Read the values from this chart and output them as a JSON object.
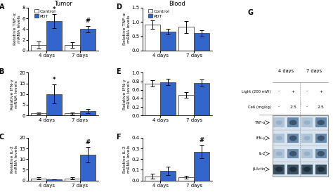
{
  "title_A": "Tumor",
  "title_D": "Blood",
  "legend_control": "Control",
  "legend_PDT": "PDT",
  "color_control": "#ffffff",
  "color_PDT": "#3366cc",
  "bar_edge_color": "#444444",
  "bar_width": 0.3,
  "group_labels": [
    "4 days",
    "7 days"
  ],
  "panels": {
    "A": {
      "label": "A",
      "ylabel": "Relative TNF-α\nmRNA levels",
      "ylim": [
        0,
        8
      ],
      "yticks": [
        0,
        2,
        4,
        6,
        8
      ],
      "control_vals": [
        1.0,
        1.0
      ],
      "pdt_vals": [
        5.5,
        4.0
      ],
      "control_err": [
        0.7,
        0.5
      ],
      "pdt_err": [
        1.3,
        0.6
      ],
      "stars": [
        "*",
        "#"
      ]
    },
    "B": {
      "label": "B",
      "ylabel": "Relative IFN-γ\nmRNA levels",
      "ylim": [
        0,
        20
      ],
      "yticks": [
        0,
        5,
        10,
        15,
        20
      ],
      "control_vals": [
        1.0,
        1.0
      ],
      "pdt_vals": [
        10.0,
        2.0
      ],
      "control_err": [
        0.4,
        0.5
      ],
      "pdt_err": [
        4.5,
        0.9
      ],
      "stars": [
        "*",
        ""
      ]
    },
    "C": {
      "label": "C",
      "ylabel": "Relative IL-2\nmRNA levels",
      "ylim": [
        0,
        20
      ],
      "yticks": [
        0,
        5,
        10,
        15,
        20
      ],
      "control_vals": [
        1.0,
        1.0
      ],
      "pdt_vals": [
        0.5,
        12.0
      ],
      "control_err": [
        0.4,
        0.5
      ],
      "pdt_err": [
        0.1,
        3.5
      ],
      "stars": [
        "",
        "#"
      ]
    },
    "D": {
      "label": "D",
      "ylabel": "Relative TNF-α\nmRNA levels",
      "ylim": [
        0,
        1.5
      ],
      "yticks": [
        0.0,
        0.5,
        1.0,
        1.5
      ],
      "control_vals": [
        0.9,
        0.82
      ],
      "pdt_vals": [
        0.65,
        0.6
      ],
      "control_err": [
        0.15,
        0.2
      ],
      "pdt_err": [
        0.1,
        0.12
      ],
      "stars": [
        "",
        ""
      ]
    },
    "E": {
      "label": "E",
      "ylabel": "Relative IFN-γ\nmRNA levels",
      "ylim": [
        0,
        1.0
      ],
      "yticks": [
        0.0,
        0.2,
        0.4,
        0.6,
        0.8,
        1.0
      ],
      "control_vals": [
        0.75,
        0.48
      ],
      "pdt_vals": [
        0.78,
        0.76
      ],
      "control_err": [
        0.07,
        0.07
      ],
      "pdt_err": [
        0.07,
        0.08
      ],
      "stars": [
        "",
        ""
      ]
    },
    "F": {
      "label": "F",
      "ylabel": "Relative IL-2\nmRNA levels",
      "ylim": [
        0,
        0.4
      ],
      "yticks": [
        0.0,
        0.1,
        0.2,
        0.3,
        0.4
      ],
      "control_vals": [
        0.04,
        0.03
      ],
      "pdt_vals": [
        0.09,
        0.27
      ],
      "control_err": [
        0.02,
        0.015
      ],
      "pdt_err": [
        0.04,
        0.06
      ],
      "stars": [
        "",
        "#"
      ]
    }
  },
  "G": {
    "days_headers": [
      "4 days",
      "7 days"
    ],
    "light_row": [
      "-",
      "+",
      "-",
      "+"
    ],
    "ce6_row": [
      "-",
      "2.5",
      "-",
      "2.5"
    ],
    "band_rows": [
      {
        "label": "TNF-α",
        "colors": [
          "#b0c4d8",
          "#6688aa",
          "#b0c4d8",
          "#6688aa"
        ]
      },
      {
        "label": "IFN-γ",
        "colors": [
          "#b0c4d8",
          "#6688aa",
          "#b0c4d8",
          "#6688aa"
        ]
      },
      {
        "label": "IL-2",
        "colors": [
          "#b0c4d8",
          "#6688aa",
          "#b0c4d8",
          "#6688aa"
        ]
      },
      {
        "label": "β-Actin",
        "colors": [
          "#3a5060",
          "#3a5060",
          "#3a5060",
          "#3a5060"
        ]
      }
    ]
  }
}
